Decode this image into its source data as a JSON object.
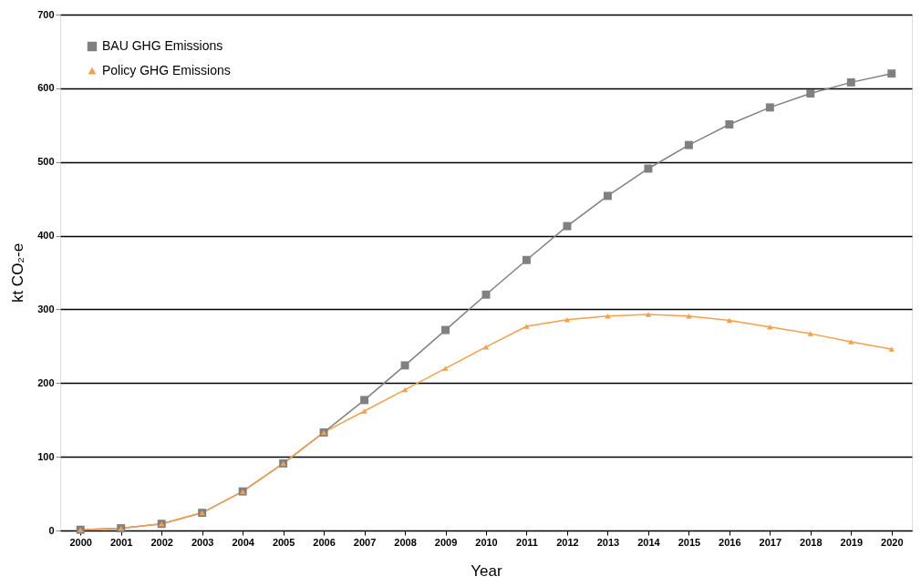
{
  "chart_data": {
    "type": "line",
    "xlabel": "Year",
    "ylabel": "kt CO₂-e",
    "categories": [
      "2000",
      "2001",
      "2002",
      "2003",
      "2004",
      "2005",
      "2006",
      "2007",
      "2008",
      "2009",
      "2010",
      "2011",
      "2012",
      "2013",
      "2014",
      "2015",
      "2016",
      "2017",
      "2018",
      "2019",
      "2020"
    ],
    "series": [
      {
        "name": "BAU GHG Emissions",
        "color": "#808080",
        "marker": "square",
        "values": [
          1,
          3,
          9,
          24,
          53,
          91,
          133,
          177,
          224,
          272,
          320,
          367,
          413,
          454,
          491,
          523,
          551,
          574,
          593,
          608,
          620
        ]
      },
      {
        "name": "Policy GHG Emissions",
        "color": "#f5a04a",
        "marker": "triangle",
        "values": [
          1,
          3,
          9,
          24,
          53,
          91,
          133,
          162,
          191,
          220,
          249,
          277,
          286,
          291,
          293,
          291,
          285,
          276,
          267,
          256,
          246
        ]
      }
    ],
    "ylim": [
      0,
      700
    ],
    "yticks": [
      0,
      100,
      200,
      300,
      400,
      500,
      600,
      700
    ],
    "grid": "y",
    "legend": "top left",
    "line_style": "solid"
  }
}
